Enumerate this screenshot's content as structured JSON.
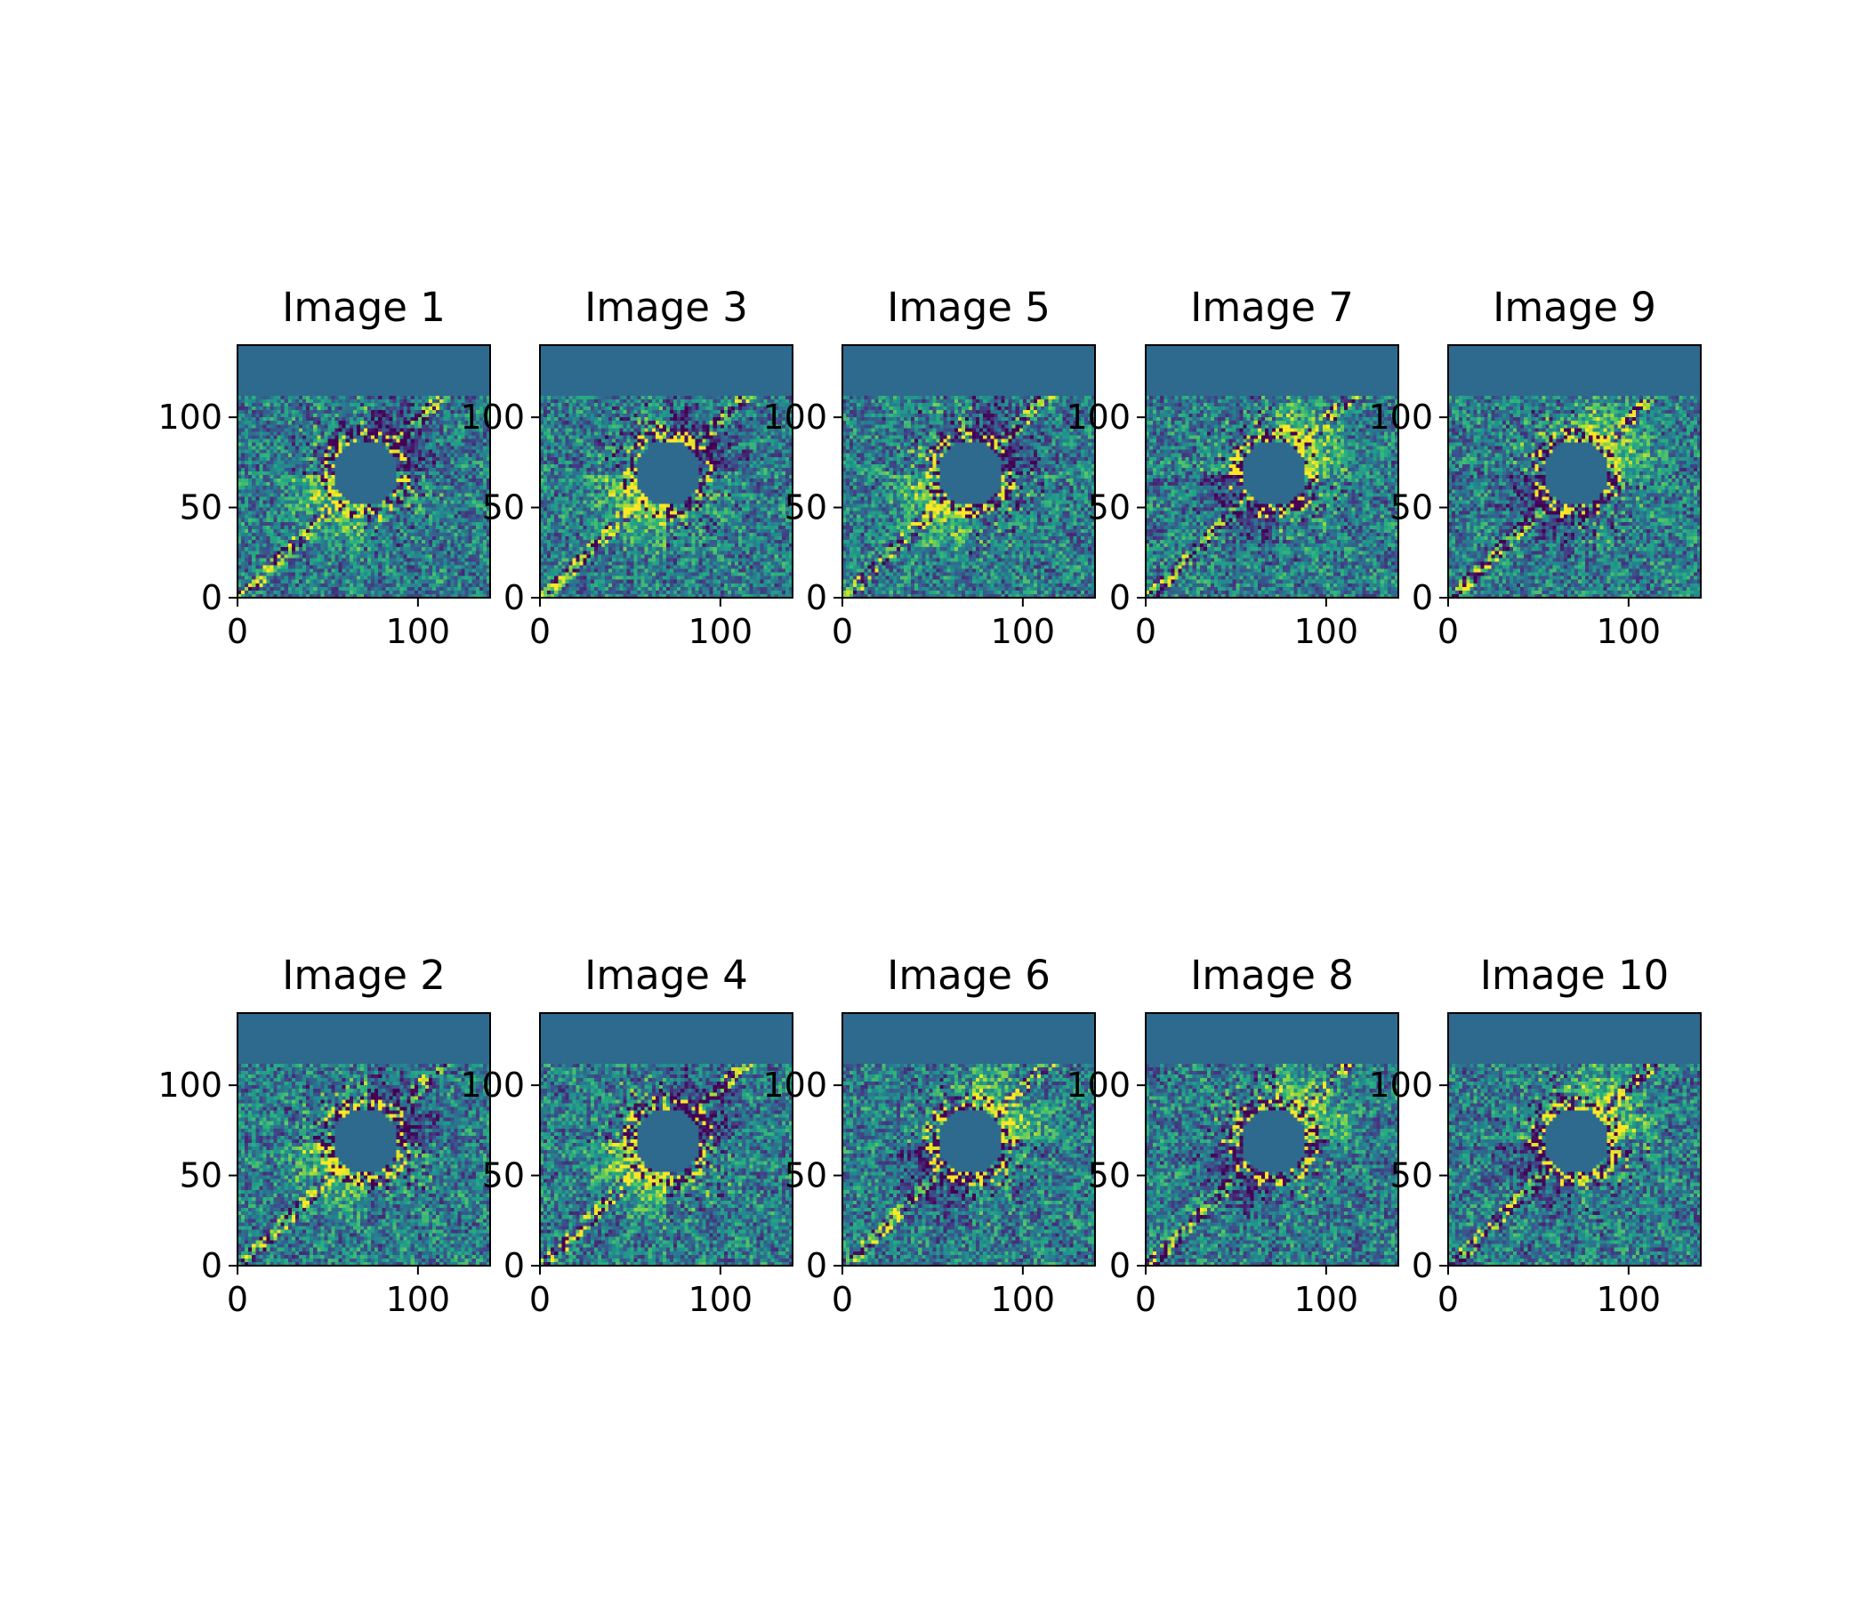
{
  "figure": {
    "layout": "2 rows x 5 columns",
    "colormap": "viridis",
    "background_color": "#ffffff",
    "mask_color": "#2e6a8e"
  },
  "chart_data": [
    {
      "type": "heatmap",
      "title": "Image 1",
      "xlim": [
        0,
        140
      ],
      "ylim": [
        0,
        140
      ],
      "xticks": [
        "0",
        "100"
      ],
      "yticks": [
        "0",
        "50",
        "100"
      ],
      "pattern": {
        "bright_quadrant": "lower-left"
      }
    },
    {
      "type": "heatmap",
      "title": "Image 3",
      "xlim": [
        0,
        140
      ],
      "ylim": [
        0,
        140
      ],
      "xticks": [
        "0",
        "100"
      ],
      "yticks": [
        "0",
        "50",
        "100"
      ],
      "pattern": {
        "bright_quadrant": "lower-left"
      }
    },
    {
      "type": "heatmap",
      "title": "Image 5",
      "xlim": [
        0,
        140
      ],
      "ylim": [
        0,
        140
      ],
      "xticks": [
        "0",
        "100"
      ],
      "yticks": [
        "0",
        "50",
        "100"
      ],
      "pattern": {
        "bright_quadrant": "lower-left"
      }
    },
    {
      "type": "heatmap",
      "title": "Image 7",
      "xlim": [
        0,
        140
      ],
      "ylim": [
        0,
        140
      ],
      "xticks": [
        "0",
        "100"
      ],
      "yticks": [
        "0",
        "50",
        "100"
      ],
      "pattern": {
        "bright_quadrant": "upper-right"
      }
    },
    {
      "type": "heatmap",
      "title": "Image 9",
      "xlim": [
        0,
        140
      ],
      "ylim": [
        0,
        140
      ],
      "xticks": [
        "0",
        "100"
      ],
      "yticks": [
        "0",
        "50",
        "100"
      ],
      "pattern": {
        "bright_quadrant": "upper-right"
      }
    },
    {
      "type": "heatmap",
      "title": "Image 2",
      "xlim": [
        0,
        140
      ],
      "ylim": [
        0,
        140
      ],
      "xticks": [
        "0",
        "100"
      ],
      "yticks": [
        "0",
        "50",
        "100"
      ],
      "pattern": {
        "bright_quadrant": "lower-left"
      }
    },
    {
      "type": "heatmap",
      "title": "Image 4",
      "xlim": [
        0,
        140
      ],
      "ylim": [
        0,
        140
      ],
      "xticks": [
        "0",
        "100"
      ],
      "yticks": [
        "0",
        "50",
        "100"
      ],
      "pattern": {
        "bright_quadrant": "lower-left"
      }
    },
    {
      "type": "heatmap",
      "title": "Image 6",
      "xlim": [
        0,
        140
      ],
      "ylim": [
        0,
        140
      ],
      "xticks": [
        "0",
        "100"
      ],
      "yticks": [
        "0",
        "50",
        "100"
      ],
      "pattern": {
        "bright_quadrant": "upper-right"
      }
    },
    {
      "type": "heatmap",
      "title": "Image 8",
      "xlim": [
        0,
        140
      ],
      "ylim": [
        0,
        140
      ],
      "xticks": [
        "0",
        "100"
      ],
      "yticks": [
        "0",
        "50",
        "100"
      ],
      "pattern": {
        "bright_quadrant": "upper-right"
      }
    },
    {
      "type": "heatmap",
      "title": "Image 10",
      "xlim": [
        0,
        140
      ],
      "ylim": [
        0,
        140
      ],
      "xticks": [
        "0",
        "100"
      ],
      "yticks": [
        "0",
        "50",
        "100"
      ],
      "pattern": {
        "bright_quadrant": "upper-right"
      }
    }
  ]
}
